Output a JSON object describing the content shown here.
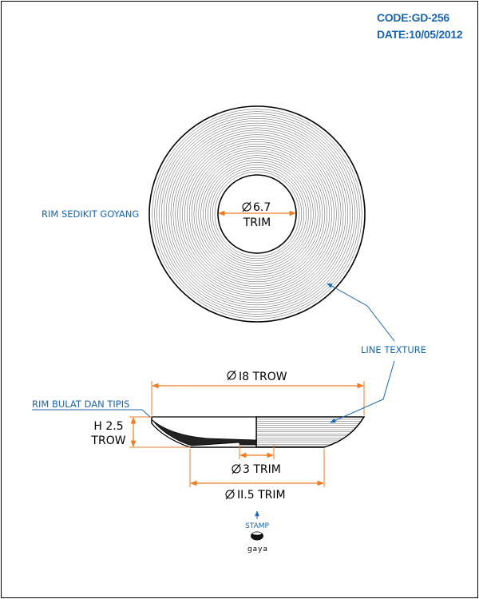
{
  "header": {
    "code": "CODE:GD-256",
    "date": "DATE:10/05/2012"
  },
  "notes": {
    "rim_sedikit_goyang": "RIM SEDIKIT GOYANG",
    "line_texture": "LINE TEXTURE",
    "rim_bulat_dan_tipis": "RIM BULAT DAN TIPIS",
    "stamp": "STAMP"
  },
  "dimensions": {
    "inner_diameter_value": "6.7",
    "inner_diameter_note": "TRIM",
    "overall_diameter": "I8 TROW",
    "height_value": "H 2.5",
    "height_note": "TROW",
    "hole_diameter": "3 TRIM",
    "foot_diameter": "II.5 TRIM"
  },
  "logo": {
    "text": "gaya"
  },
  "colors": {
    "note_blue": "#1b66b1",
    "dimension_orange": "#f07b22",
    "line_black": "#000000"
  }
}
